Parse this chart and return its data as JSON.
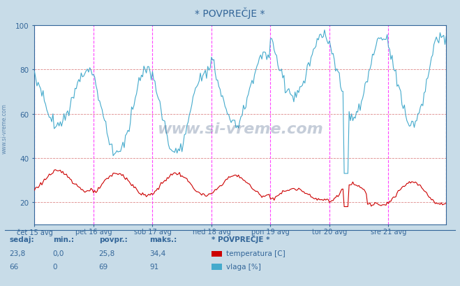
{
  "title": "* POVPREČJE *",
  "fig_bg_color": "#c8dce8",
  "plot_bg_color": "#ffffff",
  "grid_color_h": "#dd8888",
  "grid_color_v": "#ff44ff",
  "temp_color": "#cc0000",
  "humid_color": "#44aacc",
  "ylim": [
    10,
    100
  ],
  "yticks": [
    20,
    40,
    60,
    80,
    100
  ],
  "n_points": 336,
  "x_labels": [
    "čet 15 avg",
    "pet 16 avg",
    "sob 17 avg",
    "ned 18 avg",
    "pon 19 avg",
    "tor 20 avg",
    "sre 21 avg"
  ],
  "x_ticks_pos": [
    0,
    48,
    96,
    144,
    192,
    240,
    288
  ],
  "watermark": "www.si-vreme.com",
  "legend_title": "* POVPREČJE *",
  "label_sedaj": "sedaj:",
  "label_min": "min.:",
  "label_povpr": "povpr.:",
  "label_maks": "maks.:",
  "temp_sedaj": "23,8",
  "temp_min": "0,0",
  "temp_povpr": "25,8",
  "temp_maks": "34,4",
  "humid_sedaj": "66",
  "humid_min": "0",
  "humid_povpr": "69",
  "humid_maks": "91",
  "temp_label": "temperatura [C]",
  "humid_label": "vlaga [%]",
  "title_color": "#336699",
  "text_color": "#336699",
  "axis_color": "#336699"
}
